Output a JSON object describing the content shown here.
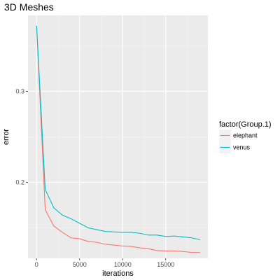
{
  "chart_data": {
    "type": "line",
    "title": "3D Meshes",
    "xlabel": "iterations",
    "ylabel": "error",
    "xlim": [
      -1000,
      19900
    ],
    "ylim": [
      0.1165,
      0.3835
    ],
    "xticks": [
      0,
      5000,
      10000,
      15000
    ],
    "xtick_labels": [
      "0",
      "5000",
      "10000",
      "15000"
    ],
    "yticks": [
      0.2,
      0.3
    ],
    "ytick_labels": [
      "0.2",
      "0.3"
    ],
    "grid": true,
    "legend": {
      "title": "factor(Group.1)",
      "position": "right"
    },
    "series": [
      {
        "name": "elephant",
        "color": "#F8766D",
        "x": [
          0,
          1000,
          2000,
          3000,
          4000,
          5000,
          6000,
          7000,
          8000,
          9000,
          10000,
          11000,
          12000,
          13000,
          14000,
          15000,
          16000,
          17000,
          18000,
          19000
        ],
        "y": [
          0.372,
          0.17,
          0.152,
          0.145,
          0.139,
          0.138,
          0.135,
          0.134,
          0.132,
          0.131,
          0.13,
          0.1295,
          0.128,
          0.127,
          0.125,
          0.1245,
          0.1245,
          0.124,
          0.123,
          0.1228
        ]
      },
      {
        "name": "venus",
        "color": "#00BFC4",
        "x": [
          0,
          1000,
          2000,
          3000,
          4000,
          5000,
          6000,
          7000,
          8000,
          9000,
          10000,
          11000,
          12000,
          13000,
          14000,
          15000,
          16000,
          17000,
          18000,
          19000
        ],
        "y": [
          0.372,
          0.192,
          0.172,
          0.164,
          0.16,
          0.155,
          0.15,
          0.148,
          0.146,
          0.1455,
          0.145,
          0.145,
          0.144,
          0.142,
          0.142,
          0.1405,
          0.141,
          0.14,
          0.139,
          0.137
        ]
      }
    ]
  }
}
